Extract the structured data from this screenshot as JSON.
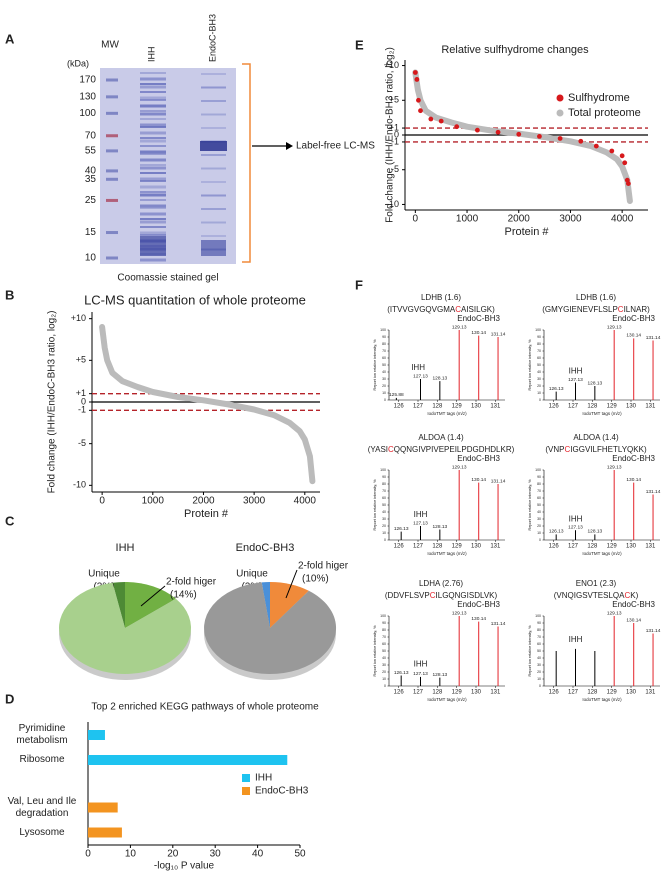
{
  "panel_labels": [
    "A",
    "B",
    "C",
    "D",
    "E",
    "F"
  ],
  "gel": {
    "mw_label": "MW",
    "unit": "(kDa)",
    "lanes": [
      "IHH",
      "EndoC-BH3"
    ],
    "markers": [
      170,
      130,
      100,
      70,
      55,
      40,
      35,
      25,
      15,
      10
    ],
    "caption": "Coomassie stained gel",
    "arrow_label": "Label-free LC-MS"
  },
  "chart_data": [
    {
      "type": "line",
      "title": "LC-MS quantitation of whole proteome",
      "x_label": "Protein #",
      "y_label": "Fold change (IHH/EndoC-BH3 ratio, log₂)",
      "series": [
        {
          "color": "#bbbbbb",
          "x": [
            0,
            50,
            100,
            200,
            400,
            700,
            1000,
            1500,
            2000,
            2500,
            3000,
            3400,
            3700,
            3900,
            4000,
            4100,
            4150
          ],
          "values": [
            9,
            6.5,
            5,
            3.5,
            2.5,
            1.8,
            1.2,
            0.6,
            0.2,
            -0.3,
            -0.9,
            -1.6,
            -2.5,
            -3.5,
            -4.5,
            -6.5,
            -9.5
          ]
        }
      ],
      "xlim": [
        -200,
        4300
      ],
      "xticks": [
        0,
        1000,
        2000,
        3000,
        4000
      ],
      "ylim": [
        -10.8,
        10.8
      ],
      "yticks": [
        {
          "value": 10,
          "label": "+10"
        },
        {
          "value": 5,
          "label": "+5"
        },
        {
          "value": 1,
          "label": "+1"
        },
        0,
        -1,
        -5,
        -10
      ],
      "zero_line": true,
      "threshold_lines": [
        1,
        -1
      ],
      "threshold_color": "#b5232a"
    },
    {
      "type": "pie",
      "title": "IHH",
      "categories": [
        "Unique",
        "2-fold higer",
        null
      ],
      "values": [
        3,
        14,
        83
      ],
      "value_labels": [
        "(3%)",
        "(14%)",
        null
      ],
      "colors": [
        "#4d8a35",
        "#71b043",
        "#a8d08d"
      ]
    },
    {
      "type": "pie",
      "title": "EndoC-BH3",
      "categories": [
        "Unique",
        "2-fold higer",
        null
      ],
      "values": [
        2,
        10,
        88
      ],
      "value_labels": [
        "(2%)",
        "(10%)",
        null
      ],
      "colors": [
        "#4a90d9",
        "#f08a3a",
        "#999999"
      ]
    },
    {
      "type": "bar",
      "orientation": "horizontal",
      "title": "Top 2 enriched KEGG pathways of whole proteome",
      "x_label": "-log₁₀ P value",
      "categories": [
        "Pyrimidine metabolism",
        "Ribosome",
        "Val, Leu and Ile degradation",
        "Lysosome"
      ],
      "series": [
        {
          "name": "IHH",
          "color": "#1ec3f0",
          "values": [
            4,
            47,
            null,
            null
          ]
        },
        {
          "name": "EndoC-BH3",
          "color": "#f39420",
          "values": [
            null,
            null,
            7,
            8
          ]
        }
      ],
      "xlim": [
        0,
        50
      ],
      "xticks": [
        0,
        10,
        20,
        30,
        40,
        50
      ],
      "legend": "right"
    },
    {
      "type": "line",
      "title": "Relative sulfhydrome changes",
      "x_label": "Protein #",
      "y_label": "Fold change (IHH/Endo-BH3 ratio, log₂)",
      "series": [
        {
          "name": "Sulfhydrome",
          "type": "scatter",
          "color": "#d7191c",
          "x": [
            0,
            30,
            60,
            100,
            300,
            500,
            800,
            1200,
            1600,
            2000,
            2400,
            2800,
            3200,
            3500,
            3800,
            4000,
            4050,
            4100,
            4120
          ],
          "values": [
            9,
            8,
            5,
            3.5,
            2.3,
            2,
            1.2,
            0.7,
            0.4,
            0.1,
            -0.2,
            -0.5,
            -0.9,
            -1.6,
            -2.3,
            -3,
            -4,
            -6.5,
            -7
          ]
        },
        {
          "name": "Total proteome",
          "color": "#bbbbbb",
          "x": [
            0,
            50,
            100,
            200,
            400,
            700,
            1000,
            1500,
            2000,
            2500,
            3000,
            3400,
            3700,
            3900,
            4000,
            4100,
            4150
          ],
          "values": [
            9,
            6.5,
            5,
            3.5,
            2.5,
            1.8,
            1.2,
            0.6,
            0.2,
            -0.3,
            -0.9,
            -1.6,
            -2.5,
            -3.5,
            -4.5,
            -6.5,
            -9.5
          ]
        }
      ],
      "xlim": [
        -200,
        4500
      ],
      "xticks": [
        0,
        1000,
        2000,
        3000,
        4000
      ],
      "ylim": [
        -10.8,
        10.8
      ],
      "yticks": [
        {
          "value": 10,
          "label": "+10"
        },
        {
          "value": 5,
          "label": "+5"
        },
        {
          "value": 1,
          "label": "+1"
        },
        0,
        -1,
        -5,
        -10
      ],
      "zero_line": true,
      "threshold_lines": [
        1,
        -1
      ],
      "threshold_color": "#b5232a",
      "legend": "upper right"
    },
    {
      "type": "spectrum",
      "title": "LDHB  (1.6)",
      "peptide": [
        "(ITVVGVGQVGMA",
        "C",
        "AISILGK)"
      ],
      "x_label": "IodoTMT tags (m/z)",
      "y_label": "Report ion relative intensity, %",
      "xlim": [
        125.5,
        131.5
      ],
      "xticks": [
        126,
        127,
        128,
        129,
        130,
        131
      ],
      "ylim": [
        0,
        100
      ],
      "yticks": [
        0,
        10,
        20,
        30,
        40,
        50,
        60,
        70,
        80,
        90,
        100
      ],
      "series": [
        {
          "name": "IHH",
          "color": "#000000",
          "label_peaks": true,
          "x": [
            125.88,
            127.13,
            128.13
          ],
          "values": [
            3,
            30,
            27
          ]
        },
        {
          "name": "EndoC-BH3",
          "color": "#e4222a",
          "label_peaks": true,
          "x": [
            129.13,
            130.14,
            131.14
          ],
          "values": [
            100,
            92,
            90
          ]
        }
      ]
    },
    {
      "type": "spectrum",
      "title": "LDHB  (1.6)",
      "peptide": [
        "(GMYGIENEVFLSLP",
        "C",
        "ILNAR)"
      ],
      "x_label": "IodoTMT tags (m/z)",
      "y_label": "Report ion relative intensity, %",
      "xlim": [
        125.5,
        131.5
      ],
      "xticks": [
        126,
        127,
        128,
        129,
        130,
        131
      ],
      "ylim": [
        0,
        100
      ],
      "yticks": [
        0,
        10,
        20,
        30,
        40,
        50,
        60,
        70,
        80,
        90,
        100
      ],
      "series": [
        {
          "name": "IHH",
          "color": "#000000",
          "label_peaks": true,
          "x": [
            126.13,
            127.13,
            128.13
          ],
          "values": [
            12,
            25,
            20
          ]
        },
        {
          "name": "EndoC-BH3",
          "color": "#e4222a",
          "label_peaks": true,
          "x": [
            129.13,
            130.14,
            131.14
          ],
          "values": [
            100,
            88,
            85
          ]
        }
      ]
    },
    {
      "type": "spectrum",
      "title": "ALDOA (1.4)",
      "peptide": [
        "(YASI",
        "C",
        "QQNGIVPIVEPEILPDGDHDLKR)"
      ],
      "x_label": "IodoTMT tags (m/z)",
      "y_label": "Report ion relative intensity, %",
      "xlim": [
        125.5,
        131.5
      ],
      "xticks": [
        126,
        127,
        128,
        129,
        130,
        131
      ],
      "ylim": [
        0,
        100
      ],
      "yticks": [
        0,
        10,
        20,
        30,
        40,
        50,
        60,
        70,
        80,
        90,
        100
      ],
      "series": [
        {
          "name": "IHH",
          "color": "#000000",
          "label_peaks": true,
          "x": [
            126.13,
            127.13,
            128.13
          ],
          "values": [
            12,
            20,
            15
          ]
        },
        {
          "name": "EndoC-BH3",
          "color": "#e4222a",
          "label_peaks": true,
          "x": [
            129.13,
            130.14,
            131.14
          ],
          "values": [
            100,
            82,
            80
          ]
        }
      ]
    },
    {
      "type": "spectrum",
      "title": "ALDOA (1.4)",
      "peptide": [
        "(VNP",
        "C",
        "IGGVILFHETLYQKK)"
      ],
      "x_label": "IodoTMT tags (m/z)",
      "y_label": "Report ion relative intensity, %",
      "xlim": [
        125.5,
        131.5
      ],
      "xticks": [
        126,
        127,
        128,
        129,
        130,
        131
      ],
      "ylim": [
        0,
        100
      ],
      "yticks": [
        0,
        10,
        20,
        30,
        40,
        50,
        60,
        70,
        80,
        90,
        100
      ],
      "series": [
        {
          "name": "IHH",
          "color": "#000000",
          "label_peaks": true,
          "x": [
            126.13,
            127.13,
            128.13
          ],
          "values": [
            8,
            14,
            8
          ]
        },
        {
          "name": "EndoC-BH3",
          "color": "#e4222a",
          "label_peaks": true,
          "x": [
            129.13,
            130.14,
            131.14
          ],
          "values": [
            100,
            82,
            65
          ]
        }
      ]
    },
    {
      "type": "spectrum",
      "title": "LDHA (2.76)",
      "peptide": [
        "(DDVFLSVP",
        "C",
        "ILGQNGISDLVK)"
      ],
      "x_label": "IodoTMT tags (m/z)",
      "y_label": "Report ion relative intensity, %",
      "xlim": [
        125.5,
        131.5
      ],
      "xticks": [
        126,
        127,
        128,
        129,
        130,
        131
      ],
      "ylim": [
        0,
        100
      ],
      "yticks": [
        0,
        10,
        20,
        30,
        40,
        50,
        60,
        70,
        80,
        90,
        100
      ],
      "series": [
        {
          "name": "IHH",
          "color": "#000000",
          "label_peaks": true,
          "x": [
            126.13,
            127.13,
            128.13
          ],
          "values": [
            15,
            13,
            12
          ]
        },
        {
          "name": "EndoC-BH3",
          "color": "#e4222a",
          "label_peaks": true,
          "x": [
            129.13,
            130.14,
            131.14
          ],
          "values": [
            100,
            92,
            85
          ]
        }
      ]
    },
    {
      "type": "spectrum",
      "title": "ENO1 (2.3)",
      "peptide": [
        "(VNQIGSVTESLQA",
        "C",
        "K)"
      ],
      "x_label": "IodoTMT tags (m/z)",
      "y_label": "Report ion relative intensity, %",
      "xlim": [
        125.5,
        131.5
      ],
      "xticks": [
        126,
        127,
        128,
        129,
        130,
        131
      ],
      "ylim": [
        0,
        100
      ],
      "yticks": [
        0,
        10,
        20,
        30,
        40,
        50,
        60,
        70,
        80,
        90,
        100
      ],
      "series": [
        {
          "name": "IHH",
          "color": "#000000",
          "label_peaks": false,
          "x": [
            126.13,
            127.13,
            128.13
          ],
          "values": [
            50,
            53,
            50
          ]
        },
        {
          "name": "EndoC-BH3",
          "color": "#e4222a",
          "label_peaks": true,
          "x": [
            129.13,
            130.14,
            131.14
          ],
          "values": [
            100,
            90,
            75
          ]
        }
      ]
    }
  ]
}
